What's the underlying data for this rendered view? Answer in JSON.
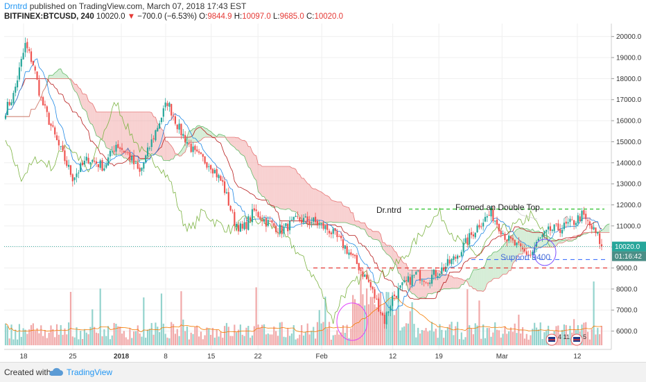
{
  "header": {
    "author": "Drntrd",
    "published_text": "published on TradingView.com, March 07, 2018 17:43 EST",
    "symbol": "BITFINEX:BTCUSD, 240",
    "last": "10020.0",
    "change_arrow": "▼",
    "change": "−700.0 (−6.53%)",
    "o_label": "O:",
    "o_value": "9844.9",
    "h_label": "H:",
    "h_value": "10097.0",
    "l_label": "L:",
    "l_value": "9685.0",
    "c_label": "C:",
    "c_value": "10020.0"
  },
  "footer": {
    "created_with": "Created with",
    "brand": "TradingView"
  },
  "colors": {
    "up": "#26a69a",
    "down": "#ef5350",
    "accent": "#2196f3",
    "price_line": "#26a69a",
    "timer_bg": "#4a8e86",
    "double_top": "#36c436",
    "support_line": "#2962ff",
    "resistance_line": "#e53935",
    "cloud_bull": "#a5d6a7",
    "cloud_bear": "#ef9a9a"
  },
  "chart_data": {
    "type": "candlestick",
    "xlabel": "",
    "ylabel": "",
    "ylim": [
      5600,
      20500
    ],
    "y_ticks": [
      "20000.0",
      "19000.0",
      "18000.0",
      "17000.0",
      "16000.0",
      "15000.0",
      "14000.0",
      "13000.0",
      "12000.0",
      "11000.0",
      "10000.0",
      "9000.0",
      "8000.0",
      "7000.0",
      "6000.0"
    ],
    "x_ticks": [
      "18",
      "25",
      "2018",
      "8",
      "15",
      "22",
      "Feb",
      "12",
      "19",
      "Mar",
      "12"
    ],
    "current_price_label": "10020.0",
    "countdown_label": "01:16:42",
    "grid": true,
    "price_path": [
      {
        "i": 0,
        "v": 16500
      },
      {
        "i": 4,
        "v": 17200
      },
      {
        "i": 10,
        "v": 19600
      },
      {
        "i": 14,
        "v": 18700
      },
      {
        "i": 18,
        "v": 17000
      },
      {
        "i": 26,
        "v": 15000
      },
      {
        "i": 34,
        "v": 13300
      },
      {
        "i": 42,
        "v": 14200
      },
      {
        "i": 50,
        "v": 13800
      },
      {
        "i": 56,
        "v": 14900
      },
      {
        "i": 62,
        "v": 14400
      },
      {
        "i": 68,
        "v": 13500
      },
      {
        "i": 76,
        "v": 15500
      },
      {
        "i": 82,
        "v": 16900
      },
      {
        "i": 88,
        "v": 15600
      },
      {
        "i": 96,
        "v": 14400
      },
      {
        "i": 104,
        "v": 13900
      },
      {
        "i": 110,
        "v": 13000
      },
      {
        "i": 116,
        "v": 11200
      },
      {
        "i": 120,
        "v": 10800
      },
      {
        "i": 126,
        "v": 11700
      },
      {
        "i": 132,
        "v": 11200
      },
      {
        "i": 140,
        "v": 10800
      },
      {
        "i": 148,
        "v": 11300
      },
      {
        "i": 156,
        "v": 11200
      },
      {
        "i": 164,
        "v": 10800
      },
      {
        "i": 172,
        "v": 10000
      },
      {
        "i": 178,
        "v": 9200
      },
      {
        "i": 184,
        "v": 8300
      },
      {
        "i": 188,
        "v": 7400
      },
      {
        "i": 192,
        "v": 6500
      },
      {
        "i": 196,
        "v": 7600
      },
      {
        "i": 202,
        "v": 8200
      },
      {
        "i": 208,
        "v": 8700
      },
      {
        "i": 214,
        "v": 8500
      },
      {
        "i": 222,
        "v": 9000
      },
      {
        "i": 228,
        "v": 9500
      },
      {
        "i": 234,
        "v": 10300
      },
      {
        "i": 240,
        "v": 11100
      },
      {
        "i": 246,
        "v": 11600
      },
      {
        "i": 250,
        "v": 11000
      },
      {
        "i": 254,
        "v": 10400
      },
      {
        "i": 258,
        "v": 10100
      },
      {
        "i": 262,
        "v": 9800
      },
      {
        "i": 266,
        "v": 9600
      },
      {
        "i": 270,
        "v": 10300
      },
      {
        "i": 276,
        "v": 10800
      },
      {
        "i": 282,
        "v": 10900
      },
      {
        "i": 288,
        "v": 11200
      },
      {
        "i": 292,
        "v": 11500
      },
      {
        "i": 296,
        "v": 11000
      },
      {
        "i": 300,
        "v": 10500
      },
      {
        "i": 302,
        "v": 10020
      }
    ],
    "annotations": [
      {
        "text": "Dr.ntrd"
      },
      {
        "text": "Formed an Double Top"
      },
      {
        "text": "Support 9400"
      }
    ],
    "levels": [
      {
        "name": "double_top",
        "value": 11800
      },
      {
        "name": "support",
        "value": 9400
      },
      {
        "name": "resistance_red",
        "value": 9000
      }
    ],
    "flags": [
      "4 11",
      "5"
    ]
  }
}
